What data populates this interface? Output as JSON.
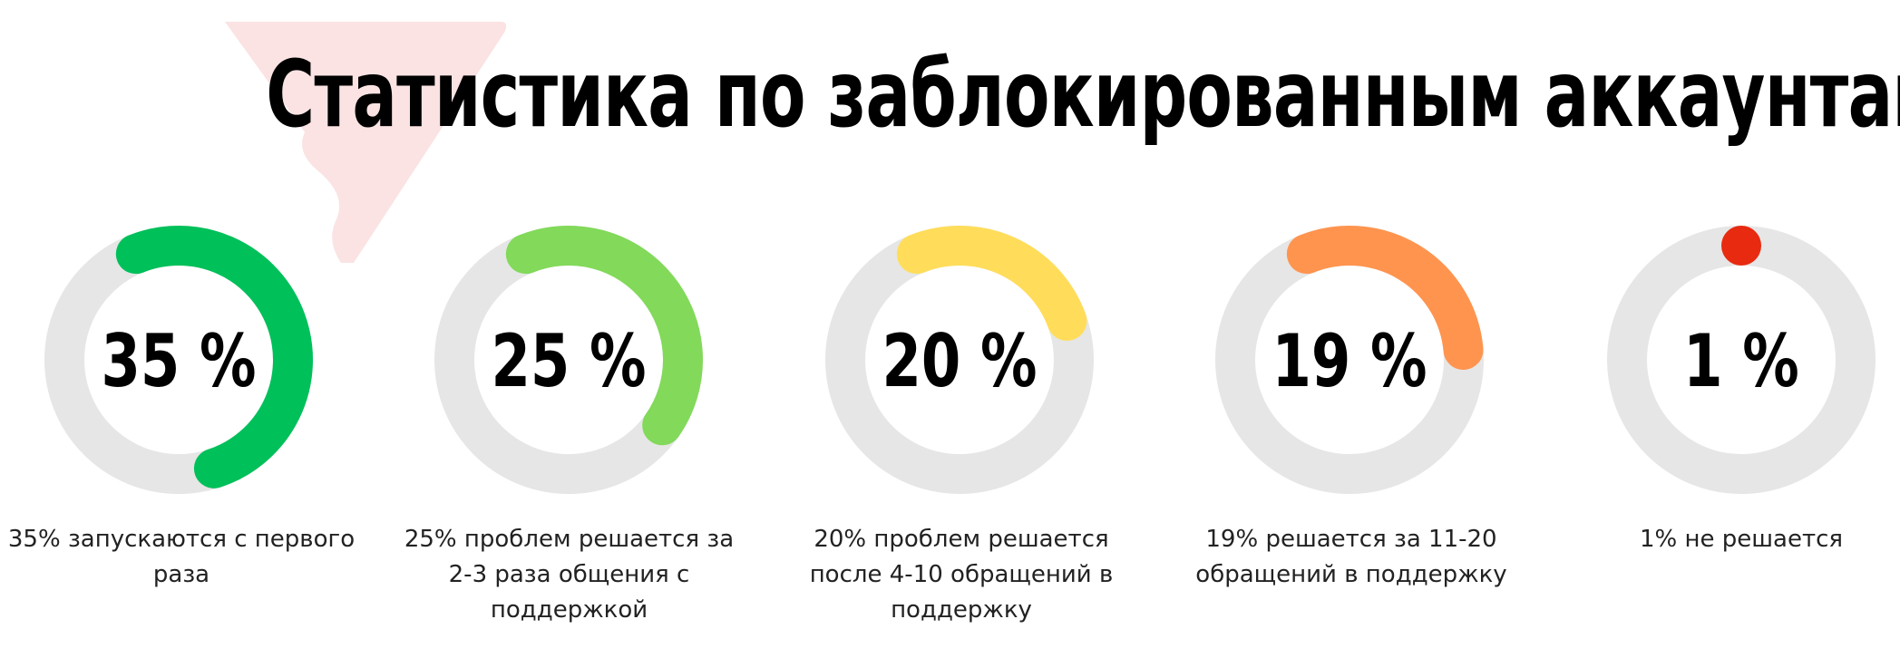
{
  "title": "Статистика по заблокированным аккаунтам",
  "chart_data": {
    "type": "pie",
    "series": [
      {
        "value": 35,
        "display": "35 %",
        "label": "35% запускаются с первого раза",
        "color": "#00c05a"
      },
      {
        "value": 25,
        "display": "25 %",
        "label": "25% проблем решается за 2-3 раза общения с поддержкой",
        "color": "#82d95a"
      },
      {
        "value": 20,
        "display": "20 %",
        "label": "20% проблем решается после 4-10 обращений в поддержку",
        "color": "#ffdd5a"
      },
      {
        "value": 19,
        "display": "19 %",
        "label": "19% решается за 11-20 обращений в поддержку",
        "color": "#ff944f"
      },
      {
        "value": 1,
        "display": "1 %",
        "label": "1% не решается",
        "color": "#e82a10"
      }
    ]
  },
  "colors": {
    "track": "#e6e6e6",
    "watermark": "#fbe3e3"
  }
}
